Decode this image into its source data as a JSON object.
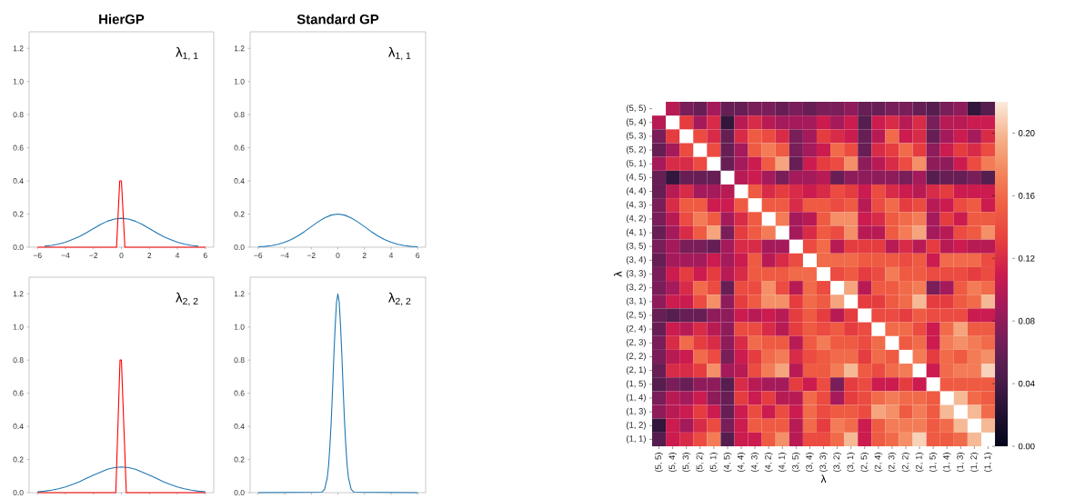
{
  "chart_data": [
    {
      "type": "line",
      "title": "HierGP",
      "annotations": [
        "λ$_{1, 1}$"
      ],
      "xlim": [
        -6.6,
        6.6
      ],
      "ylim": [
        0,
        1.3
      ],
      "xticks": [
        {
          "value": -6,
          "label": "−6"
        },
        {
          "value": -4,
          "label": "−4"
        },
        {
          "value": -2,
          "label": "−2"
        },
        {
          "value": 0,
          "label": "0"
        },
        {
          "value": 2,
          "label": "2"
        },
        {
          "value": 4,
          "label": "4"
        },
        {
          "value": 6,
          "label": "6"
        }
      ],
      "yticks": [
        {
          "value": 0,
          "label": "0.0"
        },
        {
          "value": 0.2,
          "label": "0.2"
        },
        {
          "value": 0.4,
          "label": "0.4"
        },
        {
          "value": 0.6,
          "label": "0.6"
        },
        {
          "value": 0.8,
          "label": "0.8"
        },
        {
          "value": 1.0,
          "label": "1.0"
        },
        {
          "value": 1.2,
          "label": "1.2"
        }
      ],
      "series": [
        {
          "color": "#1f77b4",
          "x": [
            -5.5,
            -5,
            -4.5,
            -4,
            -3.5,
            -3,
            -2.5,
            -2,
            -1.5,
            -1,
            -0.5,
            0,
            0.5,
            1,
            1.5,
            2,
            2.5,
            3,
            3.5,
            4,
            4.5,
            5,
            5.5
          ],
          "values": [
            0.006,
            0.011,
            0.019,
            0.03,
            0.047,
            0.065,
            0.088,
            0.112,
            0.137,
            0.157,
            0.17,
            0.175,
            0.17,
            0.157,
            0.137,
            0.112,
            0.088,
            0.065,
            0.047,
            0.03,
            0.019,
            0.011,
            0.006
          ]
        },
        {
          "color": "#ff0000",
          "x": [
            -6,
            -0.35,
            -0.12,
            0.0,
            0.25,
            6
          ],
          "values": [
            0,
            0,
            0.4,
            0.4,
            0,
            0
          ]
        }
      ]
    },
    {
      "type": "line",
      "title": "Standard GP",
      "annotations": [
        "λ$_{1, 1}$"
      ],
      "xlim": [
        -6.6,
        6.6
      ],
      "ylim": [
        0,
        1.3
      ],
      "xticks": [
        {
          "value": -6,
          "label": "−6"
        },
        {
          "value": -4,
          "label": "−4"
        },
        {
          "value": -2,
          "label": "−2"
        },
        {
          "value": 0,
          "label": "0"
        },
        {
          "value": 2,
          "label": "2"
        },
        {
          "value": 4,
          "label": "4"
        },
        {
          "value": 6,
          "label": "6"
        }
      ],
      "yticks": [
        {
          "value": 0,
          "label": "0.0"
        },
        {
          "value": 0.2,
          "label": "0.2"
        },
        {
          "value": 0.4,
          "label": "0.4"
        },
        {
          "value": 0.6,
          "label": "0.6"
        },
        {
          "value": 0.8,
          "label": "0.8"
        },
        {
          "value": 1.0,
          "label": "1.0"
        },
        {
          "value": 1.2,
          "label": "1.2"
        }
      ],
      "series": [
        {
          "color": "#1f77b4",
          "x": [
            -6,
            -5.5,
            -5,
            -4.5,
            -4,
            -3.5,
            -3,
            -2.5,
            -2,
            -1.5,
            -1,
            -0.5,
            0,
            0.5,
            1,
            1.5,
            2,
            2.5,
            3,
            3.5,
            4,
            4.5,
            5,
            5.5,
            6
          ],
          "values": [
            0.003,
            0.005,
            0.01,
            0.018,
            0.03,
            0.047,
            0.069,
            0.095,
            0.124,
            0.153,
            0.177,
            0.194,
            0.2,
            0.194,
            0.177,
            0.153,
            0.124,
            0.095,
            0.069,
            0.047,
            0.03,
            0.018,
            0.01,
            0.005,
            0.003
          ]
        }
      ]
    },
    {
      "type": "line",
      "annotations": [
        "λ$_{2, 2}$"
      ],
      "xlim": [
        -6.6,
        6.6
      ],
      "ylim": [
        0,
        1.3
      ],
      "tick_labels": "y",
      "xticks": [
        {
          "value": -6,
          "label": null
        },
        {
          "value": -4,
          "label": null
        },
        {
          "value": -2,
          "label": null
        },
        {
          "value": 0,
          "label": null
        },
        {
          "value": 2,
          "label": null
        },
        {
          "value": 4,
          "label": null
        },
        {
          "value": 6,
          "label": null
        }
      ],
      "yticks": [
        {
          "value": 0,
          "label": "0.0"
        },
        {
          "value": 0.2,
          "label": "0.2"
        },
        {
          "value": 0.4,
          "label": "0.4"
        },
        {
          "value": 0.6,
          "label": "0.6"
        },
        {
          "value": 0.8,
          "label": "0.8"
        },
        {
          "value": 1.0,
          "label": "1.0"
        },
        {
          "value": 1.2,
          "label": "1.2"
        }
      ],
      "series": [
        {
          "color": "#1f77b4",
          "x": [
            -6,
            -5.5,
            -5,
            -4.5,
            -4,
            -3.5,
            -3,
            -2.5,
            -2,
            -1.5,
            -1,
            -0.5,
            0,
            0.5,
            1,
            1.5,
            2,
            2.5,
            3,
            3.5,
            4,
            4.5,
            5,
            5.5,
            6
          ],
          "values": [
            0.005,
            0.009,
            0.015,
            0.023,
            0.034,
            0.049,
            0.066,
            0.086,
            0.106,
            0.124,
            0.141,
            0.151,
            0.155,
            0.151,
            0.141,
            0.124,
            0.106,
            0.086,
            0.066,
            0.049,
            0.034,
            0.023,
            0.015,
            0.009,
            0.005
          ]
        },
        {
          "color": "#ff0000",
          "x": [
            -6,
            -0.4,
            -0.1,
            0.0,
            0.35,
            6
          ],
          "values": [
            0,
            0,
            0.8,
            0.8,
            0,
            0
          ]
        }
      ]
    },
    {
      "type": "line",
      "annotations": [
        "λ$_{2, 2}$"
      ],
      "xlim": [
        -6.6,
        6.6
      ],
      "ylim": [
        0,
        1.3
      ],
      "tick_labels": "y",
      "xticks": [
        {
          "value": -6,
          "label": null
        },
        {
          "value": -4,
          "label": null
        },
        {
          "value": -2,
          "label": null
        },
        {
          "value": 0,
          "label": null
        },
        {
          "value": 2,
          "label": null
        },
        {
          "value": 4,
          "label": null
        },
        {
          "value": 6,
          "label": null
        }
      ],
      "yticks": [
        {
          "value": 0,
          "label": "0.0"
        },
        {
          "value": 0.2,
          "label": "0.2"
        },
        {
          "value": 0.4,
          "label": "0.4"
        },
        {
          "value": 0.6,
          "label": "0.6"
        },
        {
          "value": 0.8,
          "label": "0.8"
        },
        {
          "value": 1.0,
          "label": "1.0"
        },
        {
          "value": 1.2,
          "label": "1.2"
        }
      ],
      "series": [
        {
          "color": "#1f77b4",
          "x": [
            -6,
            -1.2,
            -1.0,
            -0.8,
            -0.7,
            -0.6,
            -0.5,
            -0.4,
            -0.3,
            -0.2,
            -0.1,
            0,
            0.1,
            0.2,
            0.3,
            0.4,
            0.5,
            0.6,
            0.7,
            0.8,
            1.0,
            1.2,
            6
          ],
          "values": [
            0,
            0.003,
            0.02,
            0.088,
            0.162,
            0.28,
            0.43,
            0.62,
            0.83,
            1.01,
            1.15,
            1.2,
            1.15,
            1.01,
            0.83,
            0.62,
            0.43,
            0.28,
            0.162,
            0.088,
            0.02,
            0.003,
            0
          ]
        }
      ]
    },
    {
      "type": "heatmap",
      "xlabel": "λ",
      "ylabel": "λ",
      "clim": [
        0,
        0.22
      ],
      "cticks": [
        {
          "value": 0,
          "label": "0.00"
        },
        {
          "value": 0.04,
          "label": "0.04"
        },
        {
          "value": 0.08,
          "label": "0.08"
        },
        {
          "value": 0.12,
          "label": "0.12"
        },
        {
          "value": 0.16,
          "label": "0.16"
        },
        {
          "value": 0.2,
          "label": "0.20"
        }
      ],
      "categories": [
        "(5, 5)",
        "(5, 4)",
        "(5, 3)",
        "(5, 2)",
        "(5, 1)",
        "(4, 5)",
        "(4, 4)",
        "(4, 3)",
        "(4, 2)",
        "(4, 1)",
        "(3, 5)",
        "(3, 4)",
        "(3, 3)",
        "(3, 2)",
        "(3, 1)",
        "(2, 5)",
        "(2, 4)",
        "(2, 3)",
        "(2, 2)",
        "(2, 1)",
        "(1, 5)",
        "(1, 4)",
        "(1, 3)",
        "(1, 2)",
        "(1, 1)"
      ],
      "y_categories": [
        "(5, 5)",
        "(5, 4)",
        "(5, 3)",
        "(5, 2)",
        "(5, 1)",
        "(4, 5)",
        "(4, 4)",
        "(4, 3)",
        "(4, 2)",
        "(4, 1)",
        "(3, 5)",
        "(3, 4)",
        "(3, 3)",
        "(3, 2)",
        "(3, 1)",
        "(2, 5)",
        "(2, 4)",
        "(2, 3)",
        "(2, 2)",
        "(2, 1)",
        "(1, 5)",
        "(1, 4)",
        "(1, 3)",
        "(1, 2)",
        "(1, 1)"
      ],
      "cells": [
        [
          null,
          0.1,
          0.07,
          0.06,
          0.09,
          0.06,
          0.06,
          0.07,
          0.07,
          0.06,
          0.07,
          0.06,
          0.07,
          0.07,
          0.08,
          0.06,
          0.06,
          0.07,
          0.07,
          0.06,
          0.05,
          0.07,
          0.08,
          0.03,
          0.05
        ],
        [
          0.1,
          null,
          0.13,
          0.09,
          0.12,
          0.03,
          0.1,
          0.12,
          0.1,
          0.09,
          0.09,
          0.09,
          0.11,
          0.09,
          0.11,
          0.05,
          0.11,
          0.12,
          0.1,
          0.12,
          0.07,
          0.1,
          0.1,
          0.11,
          0.11
        ],
        [
          0.07,
          0.13,
          null,
          0.14,
          0.12,
          0.06,
          0.12,
          0.15,
          0.14,
          0.12,
          0.07,
          0.09,
          0.13,
          0.12,
          0.11,
          0.06,
          0.1,
          0.16,
          0.11,
          0.12,
          0.06,
          0.09,
          0.11,
          0.09,
          0.12
        ],
        [
          0.06,
          0.09,
          0.14,
          null,
          0.14,
          0.06,
          0.09,
          0.15,
          0.17,
          0.15,
          0.07,
          0.09,
          0.11,
          0.16,
          0.14,
          0.06,
          0.12,
          0.13,
          0.16,
          0.13,
          0.08,
          0.11,
          0.13,
          0.12,
          0.14
        ],
        [
          0.09,
          0.12,
          0.12,
          0.14,
          null,
          0.06,
          0.09,
          0.11,
          0.15,
          0.19,
          0.06,
          0.11,
          0.13,
          0.14,
          0.18,
          0.08,
          0.1,
          0.12,
          0.14,
          0.18,
          0.08,
          0.08,
          0.11,
          0.14,
          0.17
        ],
        [
          0.06,
          0.03,
          0.06,
          0.06,
          0.06,
          null,
          0.1,
          0.11,
          0.09,
          0.07,
          0.09,
          0.09,
          0.1,
          0.06,
          0.08,
          0.08,
          0.08,
          0.08,
          0.07,
          0.09,
          0.05,
          0.06,
          0.06,
          0.07,
          0.05
        ],
        [
          0.06,
          0.1,
          0.12,
          0.09,
          0.09,
          0.1,
          null,
          0.15,
          0.12,
          0.13,
          0.12,
          0.11,
          0.12,
          0.14,
          0.13,
          0.11,
          0.14,
          0.12,
          0.11,
          0.1,
          0.12,
          0.13,
          0.11,
          0.11,
          0.11
        ],
        [
          0.07,
          0.12,
          0.15,
          0.15,
          0.11,
          0.11,
          0.15,
          null,
          0.15,
          0.15,
          0.12,
          0.15,
          0.15,
          0.14,
          0.15,
          0.1,
          0.14,
          0.16,
          0.13,
          0.14,
          0.1,
          0.11,
          0.14,
          0.15,
          0.11
        ],
        [
          0.07,
          0.1,
          0.14,
          0.17,
          0.15,
          0.09,
          0.12,
          0.15,
          null,
          0.17,
          0.09,
          0.1,
          0.15,
          0.18,
          0.18,
          0.11,
          0.12,
          0.15,
          0.16,
          0.17,
          0.09,
          0.13,
          0.11,
          0.15,
          0.15
        ],
        [
          0.06,
          0.09,
          0.12,
          0.15,
          0.19,
          0.07,
          0.13,
          0.15,
          0.17,
          null,
          0.09,
          0.12,
          0.15,
          0.14,
          0.18,
          0.1,
          0.1,
          0.15,
          0.17,
          0.19,
          0.09,
          0.1,
          0.14,
          0.15,
          0.18
        ],
        [
          0.07,
          0.09,
          0.07,
          0.07,
          0.06,
          0.09,
          0.12,
          0.12,
          0.09,
          0.09,
          null,
          0.14,
          0.16,
          0.1,
          0.13,
          0.13,
          0.13,
          0.1,
          0.12,
          0.1,
          0.13,
          0.1,
          0.11,
          0.1,
          0.1
        ],
        [
          0.06,
          0.09,
          0.09,
          0.09,
          0.11,
          0.09,
          0.11,
          0.15,
          0.1,
          0.12,
          0.14,
          null,
          0.16,
          0.16,
          0.16,
          0.15,
          0.15,
          0.15,
          0.14,
          0.15,
          0.11,
          0.16,
          0.16,
          0.16,
          0.14
        ],
        [
          0.07,
          0.11,
          0.13,
          0.11,
          0.13,
          0.1,
          0.12,
          0.15,
          0.15,
          0.15,
          0.16,
          0.16,
          null,
          0.14,
          0.15,
          0.13,
          0.14,
          0.17,
          0.15,
          0.15,
          0.14,
          0.14,
          0.14,
          0.13,
          0.14
        ],
        [
          0.07,
          0.09,
          0.12,
          0.16,
          0.14,
          0.06,
          0.14,
          0.14,
          0.18,
          0.14,
          0.1,
          0.16,
          0.14,
          null,
          0.19,
          0.1,
          0.15,
          0.15,
          0.16,
          0.17,
          0.07,
          0.09,
          0.15,
          0.17,
          0.16
        ],
        [
          0.08,
          0.11,
          0.11,
          0.14,
          0.18,
          0.08,
          0.13,
          0.15,
          0.18,
          0.18,
          0.13,
          0.16,
          0.15,
          0.19,
          null,
          0.13,
          0.13,
          0.15,
          0.16,
          0.2,
          0.13,
          0.13,
          0.15,
          0.16,
          0.2
        ],
        [
          0.06,
          0.05,
          0.06,
          0.06,
          0.08,
          0.08,
          0.11,
          0.1,
          0.11,
          0.1,
          0.13,
          0.15,
          0.13,
          0.1,
          0.13,
          null,
          0.14,
          0.14,
          0.13,
          0.15,
          0.14,
          0.14,
          0.14,
          0.11,
          0.11
        ],
        [
          0.06,
          0.11,
          0.1,
          0.12,
          0.1,
          0.08,
          0.14,
          0.14,
          0.12,
          0.1,
          0.13,
          0.15,
          0.14,
          0.15,
          0.13,
          0.14,
          null,
          0.16,
          0.16,
          0.14,
          0.11,
          0.16,
          0.19,
          0.15,
          0.15
        ],
        [
          0.07,
          0.12,
          0.16,
          0.13,
          0.12,
          0.08,
          0.12,
          0.16,
          0.15,
          0.15,
          0.1,
          0.15,
          0.17,
          0.15,
          0.15,
          0.14,
          0.16,
          null,
          0.15,
          0.16,
          0.11,
          0.17,
          0.18,
          0.17,
          0.16
        ],
        [
          0.07,
          0.1,
          0.11,
          0.16,
          0.14,
          0.07,
          0.11,
          0.13,
          0.16,
          0.17,
          0.12,
          0.14,
          0.15,
          0.16,
          0.16,
          0.13,
          0.16,
          0.15,
          null,
          0.17,
          0.13,
          0.16,
          0.15,
          0.17,
          0.18
        ],
        [
          0.06,
          0.12,
          0.12,
          0.13,
          0.18,
          0.09,
          0.1,
          0.14,
          0.17,
          0.19,
          0.1,
          0.15,
          0.15,
          0.17,
          0.2,
          0.15,
          0.14,
          0.16,
          0.17,
          null,
          0.11,
          0.16,
          0.17,
          0.17,
          0.21
        ],
        [
          0.05,
          0.07,
          0.06,
          0.08,
          0.08,
          0.05,
          0.12,
          0.1,
          0.09,
          0.09,
          0.13,
          0.11,
          0.14,
          0.07,
          0.13,
          0.14,
          0.11,
          0.11,
          0.13,
          0.11,
          null,
          0.15,
          0.15,
          0.15,
          0.15
        ],
        [
          0.07,
          0.1,
          0.09,
          0.11,
          0.08,
          0.06,
          0.13,
          0.11,
          0.13,
          0.1,
          0.1,
          0.16,
          0.14,
          0.09,
          0.13,
          0.14,
          0.16,
          0.17,
          0.16,
          0.16,
          0.15,
          null,
          0.2,
          0.16,
          0.15
        ],
        [
          0.08,
          0.1,
          0.11,
          0.13,
          0.11,
          0.06,
          0.11,
          0.14,
          0.11,
          0.14,
          0.11,
          0.16,
          0.14,
          0.15,
          0.15,
          0.14,
          0.19,
          0.18,
          0.15,
          0.17,
          0.15,
          0.2,
          null,
          0.2,
          0.16
        ],
        [
          0.03,
          0.11,
          0.09,
          0.12,
          0.14,
          0.07,
          0.11,
          0.15,
          0.15,
          0.15,
          0.1,
          0.16,
          0.13,
          0.17,
          0.16,
          0.11,
          0.15,
          0.17,
          0.17,
          0.17,
          0.15,
          0.16,
          0.2,
          null,
          0.2
        ],
        [
          0.05,
          0.11,
          0.12,
          0.14,
          0.17,
          0.05,
          0.11,
          0.11,
          0.15,
          0.18,
          0.1,
          0.14,
          0.14,
          0.16,
          0.2,
          0.11,
          0.15,
          0.16,
          0.18,
          0.21,
          0.15,
          0.15,
          0.16,
          0.2,
          null
        ]
      ]
    }
  ]
}
